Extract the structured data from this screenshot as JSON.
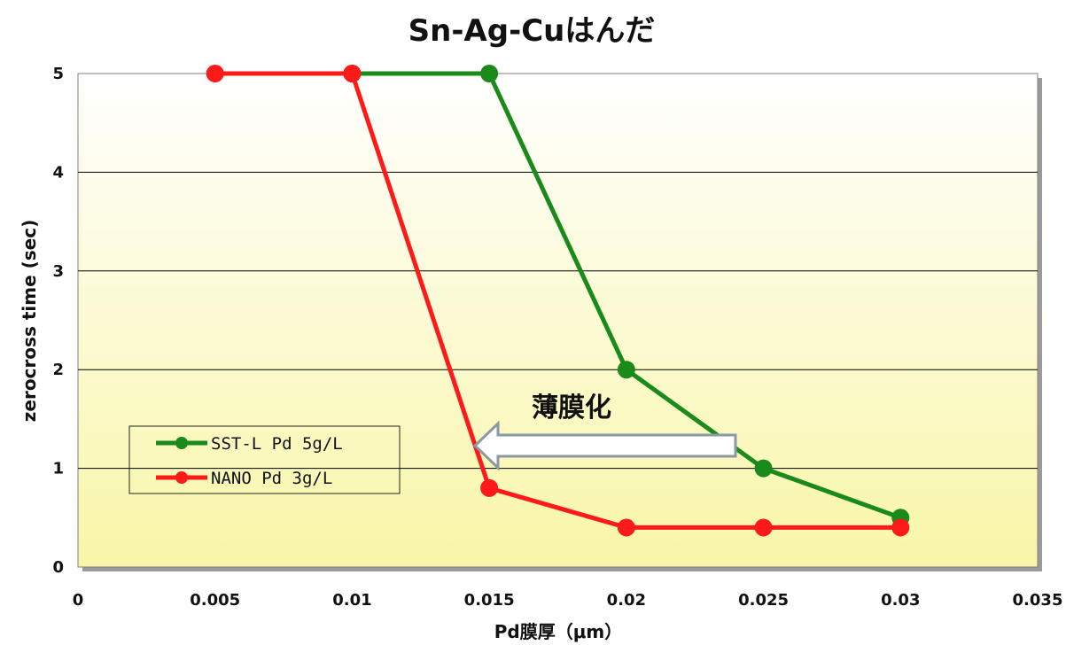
{
  "chart_data": {
    "type": "line",
    "title": "Sn-Ag-Cuはんだ",
    "xlabel": "Pd膜厚（μm）",
    "ylabel": "zerocross time (sec)",
    "xlim": [
      0,
      0.035
    ],
    "ylim": [
      0,
      5
    ],
    "x_ticks": [
      "0",
      "0.005",
      "0.01",
      "0.015",
      "0.02",
      "0.025",
      "0.03",
      "0.035"
    ],
    "y_ticks": [
      "0",
      "1",
      "2",
      "3",
      "4",
      "5"
    ],
    "grid": true,
    "legend_position": "left-lower",
    "series": [
      {
        "name": "SST-L Pd 5g/L",
        "color": "#1a8a1a",
        "points": [
          [
            0.01,
            5
          ],
          [
            0.015,
            5
          ],
          [
            0.02,
            2
          ],
          [
            0.025,
            1
          ],
          [
            0.03,
            0.5
          ]
        ]
      },
      {
        "name": "NANO Pd 3g/L",
        "color": "#ff1a1a",
        "points": [
          [
            0.005,
            5
          ],
          [
            0.01,
            5
          ],
          [
            0.015,
            0.8
          ],
          [
            0.02,
            0.4
          ],
          [
            0.025,
            0.4
          ],
          [
            0.03,
            0.4
          ]
        ]
      }
    ],
    "annotation": {
      "text": "薄膜化",
      "arrow_direction": "left"
    }
  }
}
